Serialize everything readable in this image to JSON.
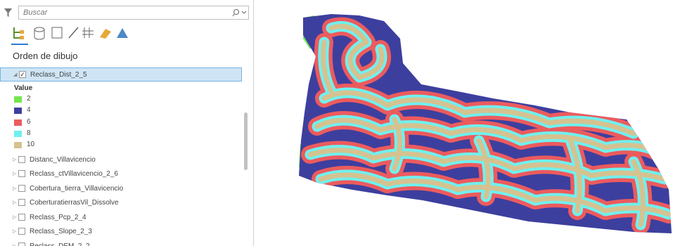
{
  "search": {
    "placeholder": "Buscar"
  },
  "panel": {
    "title": "Orden de dibujo"
  },
  "layers": [
    {
      "name": "Reclass_Dist_2_5",
      "checked": true,
      "selected": true,
      "legend": {
        "title": "Value",
        "items": [
          {
            "label": "2",
            "color": "#74e64e"
          },
          {
            "label": "4",
            "color": "#3d3f9e"
          },
          {
            "label": "6",
            "color": "#ec5b5e"
          },
          {
            "label": "8",
            "color": "#70f0ee"
          },
          {
            "label": "10",
            "color": "#d5c290"
          }
        ]
      }
    },
    {
      "name": "Distanc_Villavicencio",
      "checked": false
    },
    {
      "name": "Reclass_ctVillavicencio_2_6",
      "checked": false
    },
    {
      "name": "Cobertura_tierra_Villavicencio",
      "checked": false
    },
    {
      "name": "CoberturatierrasVil_Dissolve",
      "checked": false
    },
    {
      "name": "Reclass_Pcp_2_4",
      "checked": false
    },
    {
      "name": "Reclass_Slope_2_3",
      "checked": false
    },
    {
      "name": "Reclass_DEM_2_2",
      "checked": false
    }
  ]
}
